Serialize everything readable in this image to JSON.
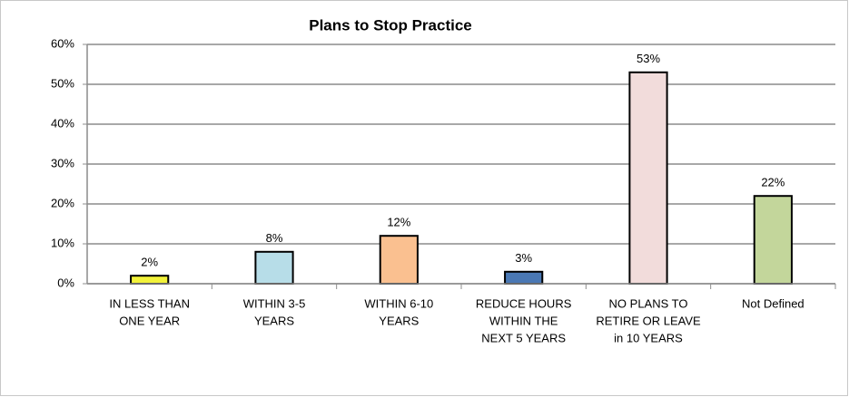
{
  "chart_data": {
    "type": "bar",
    "title": "Plans to Stop Practice",
    "categories": [
      [
        "IN LESS THAN",
        "ONE YEAR"
      ],
      [
        "WITHIN 3-5",
        "YEARS"
      ],
      [
        "WITHIN 6-10",
        "YEARS"
      ],
      [
        "REDUCE HOURS",
        "WITHIN THE",
        "NEXT 5 YEARS"
      ],
      [
        "NO PLANS TO",
        "RETIRE OR LEAVE",
        "in 10 YEARS"
      ],
      [
        "Not Defined"
      ]
    ],
    "values": [
      2,
      8,
      12,
      3,
      53,
      22
    ],
    "value_labels": [
      "2%",
      "8%",
      "12%",
      "3%",
      "53%",
      "22%"
    ],
    "colors": [
      "#f2f23a",
      "#b7dde8",
      "#fac090",
      "#4a78b4",
      "#f2dcdb",
      "#c3d69b"
    ],
    "ylim": [
      0,
      60
    ],
    "yticks": [
      {
        "value": 0,
        "label": "0%"
      },
      {
        "value": 10,
        "label": "10%"
      },
      {
        "value": 20,
        "label": "20%"
      },
      {
        "value": 30,
        "label": "30%"
      },
      {
        "value": 40,
        "label": "40%"
      },
      {
        "value": 50,
        "label": "50%"
      },
      {
        "value": 60,
        "label": "60%"
      }
    ],
    "grid": true
  }
}
